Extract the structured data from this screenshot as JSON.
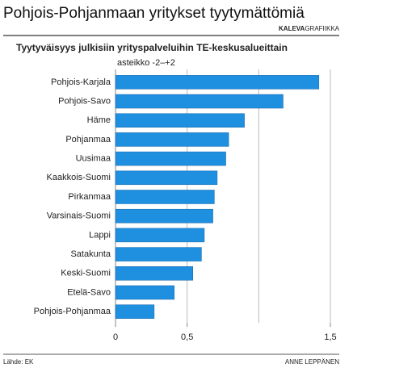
{
  "chart_data": {
    "type": "bar",
    "orientation": "horizontal",
    "title": "Pohjois-Pohjanmaan yritykset tyytymättömiä",
    "brand": [
      "KALEVA",
      "GRAFIIKKA"
    ],
    "subtitle": "Tyytyväisyys julkisiin yrityspalveluihin TE-keskusalueittain",
    "scale_note": "asteikko -2–+2",
    "source": "Lähde: EK",
    "author": "ANNE LEPPÄNEN",
    "categories": [
      "Pohjois-Karjala",
      "Pohjois-Savo",
      "Häme",
      "Pohjanmaa",
      "Uusimaa",
      "Kaakkois-Suomi",
      "Pirkanmaa",
      "Varsinais-Suomi",
      "Lappi",
      "Satakunta",
      "Keski-Suomi",
      "Etelä-Savo",
      "Pohjois-Pohjanmaa"
    ],
    "values": [
      1.42,
      1.17,
      0.9,
      0.79,
      0.77,
      0.71,
      0.69,
      0.68,
      0.62,
      0.6,
      0.54,
      0.41,
      0.27
    ],
    "color": "#1f8fe0",
    "xlim": [
      0,
      1.5
    ],
    "xticks": [
      0,
      {
        "value": 0.5,
        "label": "0,5"
      },
      {
        "value": 1.5,
        "label": "1,5"
      }
    ],
    "grid_lines": [
      0.5,
      1,
      1.5
    ]
  }
}
